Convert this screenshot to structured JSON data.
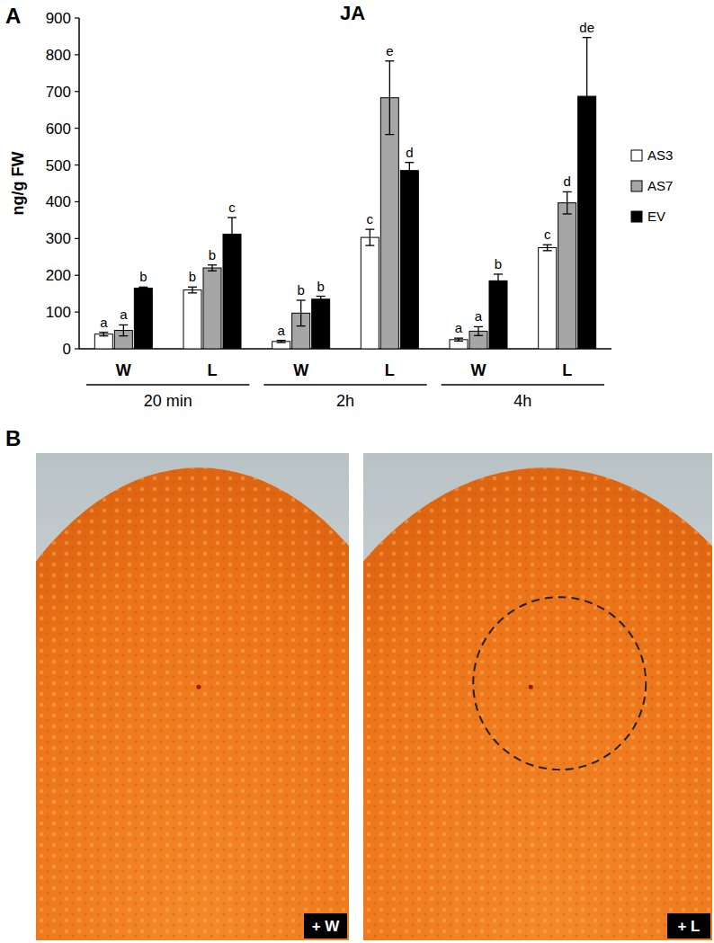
{
  "chart_data": {
    "type": "bar",
    "title": "JA",
    "panel_label": "A",
    "y_label": "ng/g FW",
    "categories": [
      "W",
      "L",
      "W",
      "L",
      "W",
      "L"
    ],
    "group_labels": [
      "20 min",
      "2h",
      "4h"
    ],
    "ylim": [
      0,
      900
    ],
    "yticks": [
      0,
      100,
      200,
      300,
      400,
      500,
      600,
      700,
      800,
      900
    ],
    "legend": "right",
    "series": [
      {
        "name": "AS3",
        "color": "#ffffff",
        "values": [
          40,
          160,
          20,
          303,
          25,
          275
        ],
        "errors": [
          5,
          8,
          3,
          22,
          4,
          8
        ],
        "letters": [
          "a",
          "b",
          "a",
          "c",
          "a",
          "c"
        ]
      },
      {
        "name": "AS7",
        "color": "#a6a6a6",
        "values": [
          50,
          220,
          97,
          683,
          48,
          397
        ],
        "errors": [
          15,
          8,
          35,
          100,
          12,
          30
        ],
        "letters": [
          "a",
          "b",
          "b",
          "e",
          "a",
          "d"
        ]
      },
      {
        "name": "EV",
        "color": "#000000",
        "values": [
          165,
          312,
          135,
          485,
          185,
          687
        ],
        "errors": [
          3,
          45,
          8,
          22,
          18,
          160
        ],
        "letters": [
          "b",
          "c",
          "b",
          "d",
          "b",
          "de"
        ]
      }
    ]
  },
  "photos": {
    "panel_label": "B",
    "images": [
      {
        "label": "+ W",
        "circled": false
      },
      {
        "label": "+ L",
        "circled": true
      }
    ]
  }
}
